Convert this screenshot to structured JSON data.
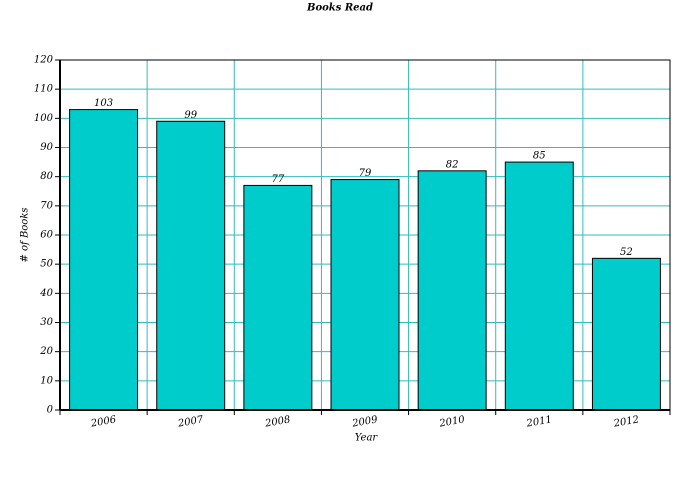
{
  "chart_data": {
    "type": "bar",
    "title": "Books Read",
    "x_label": "Year",
    "y_label": "# of Books",
    "categories": [
      "2006",
      "2007",
      "2008",
      "2009",
      "2010",
      "2011",
      "2012"
    ],
    "values": [
      103,
      99,
      77,
      79,
      82,
      85,
      52
    ],
    "color": "#00cccc",
    "grid_color": "#33bbbb",
    "ylim": [
      0,
      120
    ],
    "yticks": [
      0,
      10,
      20,
      30,
      40,
      50,
      60,
      70,
      80,
      90,
      100,
      110,
      120
    ],
    "grid": true
  }
}
